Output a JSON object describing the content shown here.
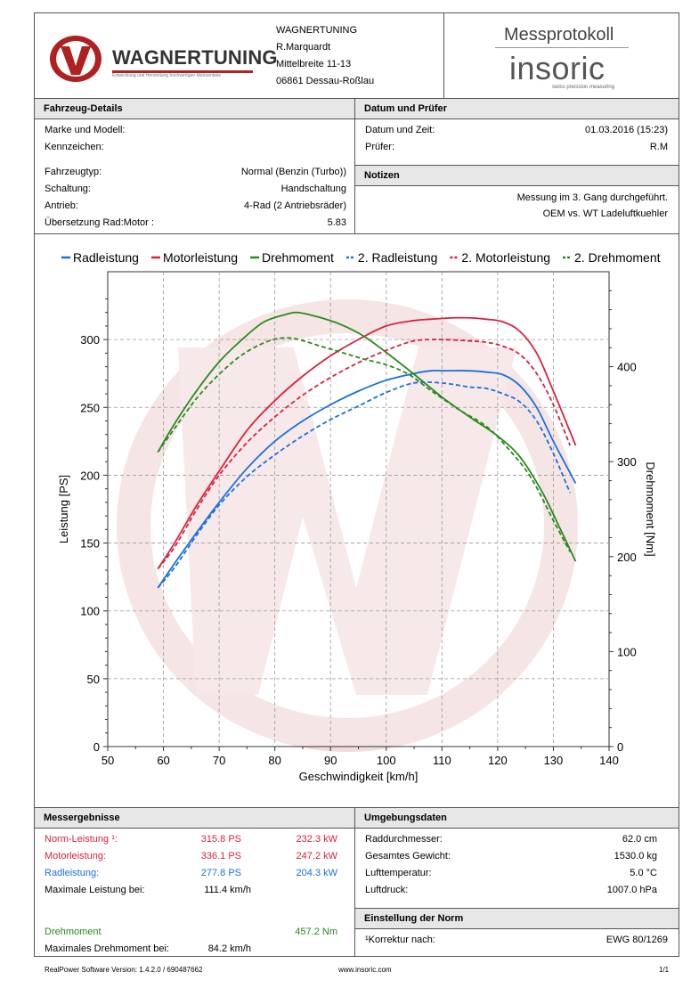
{
  "header": {
    "company": "WAGNERTUNING",
    "contact": "R.Marquardt",
    "street": "Mittelbreite 11-13",
    "city": "06861 Dessau-Roßlau",
    "logo_text": "WAGNERTUNING",
    "logo_tagline": "Entwicklung und Herstellung hochwertiger Motorenteile",
    "doc_title": "Messprotokoll",
    "brand": "insoric",
    "brand_tagline": "swiss precision measuring"
  },
  "vehicle": {
    "title": "Fahrzeug-Details",
    "rows": [
      {
        "label": "Marke und Modell:",
        "value": ""
      },
      {
        "label": "Kennzeichen:",
        "value": ""
      },
      {
        "label": "Fahrzeugtyp:",
        "value": "Normal (Benzin (Turbo))"
      },
      {
        "label": "Schaltung:",
        "value": "Handschaltung"
      },
      {
        "label": "Antrieb:",
        "value": "4-Rad (2 Antriebsräder)"
      },
      {
        "label": "Übersetzung Rad:Motor :",
        "value": "5.83"
      }
    ]
  },
  "date_tester": {
    "title": "Datum und Prüfer",
    "date_label": "Datum und Zeit:",
    "date_value": "01.03.2016 (15:23)",
    "tester_label": "Prüfer:",
    "tester_value": "R.M"
  },
  "notes": {
    "title": "Notizen",
    "line1": "Messung im 3. Gang durchgeführt.",
    "line2": "OEM vs. WT Ladeluftkuehler"
  },
  "chart_data": {
    "type": "line",
    "title": "",
    "xlabel": "Geschwindigkeit [km/h]",
    "ylabel": "Leistung [PS]",
    "y2label": "Drehmoment [Nm]",
    "xlim": [
      50,
      140
    ],
    "ylim": [
      0,
      350
    ],
    "y2lim": [
      0,
      500
    ],
    "xticks": [
      50,
      60,
      70,
      80,
      90,
      100,
      110,
      120,
      130,
      140
    ],
    "yticks": [
      0,
      50,
      100,
      150,
      200,
      250,
      300
    ],
    "y2ticks": [
      0,
      100,
      200,
      300,
      400
    ],
    "grid": true,
    "legend_position": "top",
    "series": [
      {
        "name": "Radleistung",
        "axis": "left",
        "color": "#1a6fe0",
        "dashed": false,
        "x": [
          59,
          62,
          66,
          70,
          75,
          80,
          85,
          90,
          95,
          100,
          105,
          108,
          110,
          115,
          118,
          121,
          124,
          127,
          130,
          134
        ],
        "y": [
          117,
          135,
          158,
          180,
          205,
          225,
          240,
          252,
          262,
          270,
          275,
          277,
          277,
          277,
          276,
          274,
          266,
          250,
          225,
          194
        ]
      },
      {
        "name": "Motorleistung",
        "axis": "left",
        "color": "#d9223d",
        "dashed": false,
        "x": [
          59,
          62,
          66,
          70,
          75,
          80,
          85,
          90,
          95,
          100,
          105,
          108,
          112,
          115,
          118,
          121,
          124,
          127,
          130,
          134
        ],
        "y": [
          131,
          150,
          178,
          203,
          233,
          255,
          273,
          288,
          300,
          310,
          314,
          315,
          316,
          316,
          315,
          313,
          306,
          290,
          262,
          222
        ]
      },
      {
        "name": "Drehmoment",
        "axis": "right",
        "color": "#2a8a1e",
        "dashed": false,
        "x": [
          59,
          62,
          66,
          70,
          74,
          78,
          82,
          84.2,
          88,
          92,
          96,
          100,
          105,
          110,
          115,
          120,
          124,
          128,
          131,
          134
        ],
        "y": [
          310,
          340,
          375,
          405,
          428,
          447,
          455,
          457,
          452,
          444,
          432,
          415,
          392,
          368,
          347,
          327,
          305,
          268,
          232,
          195
        ]
      },
      {
        "name": "2. Radleistung",
        "axis": "left",
        "color": "#1a6fe0",
        "dashed": true,
        "x": [
          59,
          62,
          66,
          70,
          75,
          80,
          85,
          90,
          95,
          100,
          105,
          110,
          115,
          118,
          121,
          124,
          127,
          130,
          133
        ],
        "y": [
          117,
          132,
          156,
          178,
          199,
          215,
          229,
          241,
          251,
          261,
          268,
          268,
          265,
          264,
          260,
          254,
          240,
          216,
          187
        ]
      },
      {
        "name": "2. Motorleistung",
        "axis": "left",
        "color": "#d9223d",
        "dashed": true,
        "x": [
          59,
          62,
          66,
          70,
          75,
          80,
          85,
          90,
          95,
          100,
          105,
          110,
          115,
          118,
          121,
          124,
          127,
          130,
          133
        ],
        "y": [
          131,
          147,
          175,
          200,
          224,
          243,
          259,
          272,
          283,
          292,
          299,
          300,
          299,
          298,
          295,
          289,
          275,
          252,
          222
        ]
      },
      {
        "name": "2. Drehmoment",
        "axis": "right",
        "color": "#2a8a1e",
        "dashed": true,
        "x": [
          59,
          62,
          66,
          70,
          74,
          78,
          81,
          84,
          88,
          92,
          96,
          100,
          104,
          108,
          113,
          118,
          122,
          126,
          130,
          133
        ],
        "y": [
          310,
          335,
          367,
          392,
          412,
          425,
          430,
          429,
          422,
          415,
          408,
          402,
          392,
          375,
          355,
          337,
          313,
          283,
          238,
          205
        ]
      }
    ]
  },
  "results": {
    "title": "Messergebnisse",
    "rows": [
      {
        "label": "Norm-Leistung ¹:",
        "ps": "315.8 PS",
        "kw": "232.3 kW",
        "color": "#d9223d"
      },
      {
        "label": "Motorleistung:",
        "ps": "336.1 PS",
        "kw": "247.2 kW",
        "color": "#d9223d"
      },
      {
        "label": "Radleistung:",
        "ps": "277.8 PS",
        "kw": "204.3 kW",
        "color": "#1a6fe0"
      }
    ],
    "max_power_label": "Maximale Leistung bei:",
    "max_power_value": "111.4 km/h",
    "torque_label": "Drehmoment",
    "torque_value": "457.2 Nm",
    "torque_color": "#2a8a1e",
    "max_torque_label": "Maximales Drehmoment bei:",
    "max_torque_value": "84.2 km/h"
  },
  "environment": {
    "title": "Umgebungsdaten",
    "rows": [
      {
        "label": "Raddurchmesser:",
        "value": "62.0 cm"
      },
      {
        "label": "Gesamtes Gewicht:",
        "value": "1530.0 kg"
      },
      {
        "label": "Lufttemperatur:",
        "value": "5.0 °C"
      },
      {
        "label": "Luftdruck:",
        "value": "1007.0 hPa"
      }
    ]
  },
  "norm": {
    "title": "Einstellung der Norm",
    "label": "¹Korrektur nach:",
    "value": "EWG 80/1269"
  },
  "footer": {
    "software": "RealPower Software Version:  1.4.2.0  /  690487662",
    "url": "www.insoric.com",
    "page": "1/1"
  }
}
